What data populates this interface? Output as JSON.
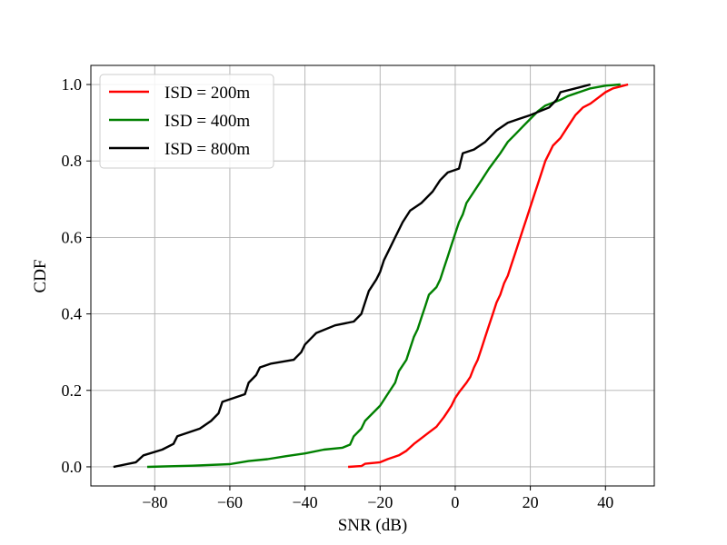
{
  "chart_data": {
    "type": "line",
    "title": "",
    "xlabel": "SNR (dB)",
    "ylabel": "CDF",
    "xlim": [
      -97,
      53
    ],
    "ylim": [
      -0.05,
      1.05
    ],
    "xticks": [
      -80,
      -60,
      -40,
      -20,
      0,
      20,
      40
    ],
    "yticks": [
      0.0,
      0.2,
      0.4,
      0.6,
      0.8,
      1.0
    ],
    "xtick_labels": [
      "−80",
      "−60",
      "−40",
      "−20",
      "0",
      "20",
      "40"
    ],
    "ytick_labels": [
      "0.0",
      "0.2",
      "0.4",
      "0.6",
      "0.8",
      "1.0"
    ],
    "grid": true,
    "legend_position": "top-left",
    "series": [
      {
        "name": "ISD = 200m",
        "color": "#ff0000",
        "points": [
          [
            -28.5,
            0.0
          ],
          [
            -25,
            0.002
          ],
          [
            -24,
            0.008
          ],
          [
            -20,
            0.012
          ],
          [
            -18,
            0.02
          ],
          [
            -15,
            0.03
          ],
          [
            -13,
            0.042
          ],
          [
            -11,
            0.06
          ],
          [
            -9,
            0.075
          ],
          [
            -7,
            0.09
          ],
          [
            -5,
            0.105
          ],
          [
            -3,
            0.13
          ],
          [
            -2,
            0.145
          ],
          [
            -1,
            0.16
          ],
          [
            0,
            0.18
          ],
          [
            1,
            0.195
          ],
          [
            3,
            0.22
          ],
          [
            4,
            0.235
          ],
          [
            5,
            0.26
          ],
          [
            6,
            0.28
          ],
          [
            7,
            0.31
          ],
          [
            8,
            0.34
          ],
          [
            9,
            0.37
          ],
          [
            10,
            0.4
          ],
          [
            11,
            0.43
          ],
          [
            12,
            0.45
          ],
          [
            13,
            0.48
          ],
          [
            14,
            0.5
          ],
          [
            15,
            0.53
          ],
          [
            16,
            0.56
          ],
          [
            17,
            0.59
          ],
          [
            18,
            0.62
          ],
          [
            19,
            0.65
          ],
          [
            20,
            0.68
          ],
          [
            21,
            0.71
          ],
          [
            22,
            0.74
          ],
          [
            23,
            0.77
          ],
          [
            24,
            0.8
          ],
          [
            25,
            0.82
          ],
          [
            26,
            0.84
          ],
          [
            28,
            0.86
          ],
          [
            30,
            0.89
          ],
          [
            32,
            0.92
          ],
          [
            34,
            0.94
          ],
          [
            36,
            0.95
          ],
          [
            38,
            0.965
          ],
          [
            40,
            0.98
          ],
          [
            42,
            0.99
          ],
          [
            44,
            0.995
          ],
          [
            46,
            1.0
          ]
        ]
      },
      {
        "name": "ISD = 400m",
        "color": "#008000",
        "points": [
          [
            -82,
            0.0
          ],
          [
            -70,
            0.003
          ],
          [
            -60,
            0.007
          ],
          [
            -55,
            0.015
          ],
          [
            -50,
            0.02
          ],
          [
            -45,
            0.028
          ],
          [
            -40,
            0.035
          ],
          [
            -35,
            0.045
          ],
          [
            -30,
            0.05
          ],
          [
            -28,
            0.058
          ],
          [
            -27,
            0.08
          ],
          [
            -25,
            0.1
          ],
          [
            -24,
            0.12
          ],
          [
            -22,
            0.14
          ],
          [
            -20,
            0.16
          ],
          [
            -18,
            0.19
          ],
          [
            -16,
            0.22
          ],
          [
            -15,
            0.25
          ],
          [
            -13,
            0.28
          ],
          [
            -12,
            0.31
          ],
          [
            -11,
            0.34
          ],
          [
            -10,
            0.36
          ],
          [
            -9,
            0.39
          ],
          [
            -8,
            0.42
          ],
          [
            -7,
            0.45
          ],
          [
            -5,
            0.47
          ],
          [
            -4,
            0.49
          ],
          [
            -3,
            0.52
          ],
          [
            -2,
            0.55
          ],
          [
            -1,
            0.58
          ],
          [
            0,
            0.61
          ],
          [
            1,
            0.64
          ],
          [
            2,
            0.66
          ],
          [
            3,
            0.69
          ],
          [
            5,
            0.72
          ],
          [
            7,
            0.75
          ],
          [
            9,
            0.78
          ],
          [
            12,
            0.82
          ],
          [
            14,
            0.85
          ],
          [
            16,
            0.87
          ],
          [
            18,
            0.89
          ],
          [
            20,
            0.91
          ],
          [
            22,
            0.93
          ],
          [
            24,
            0.945
          ],
          [
            28,
            0.96
          ],
          [
            30,
            0.97
          ],
          [
            33,
            0.98
          ],
          [
            36,
            0.99
          ],
          [
            40,
            0.997
          ],
          [
            44,
            1.0
          ]
        ]
      },
      {
        "name": "ISD = 800m",
        "color": "#000000",
        "points": [
          [
            -91,
            0.0
          ],
          [
            -85,
            0.012
          ],
          [
            -83,
            0.03
          ],
          [
            -78,
            0.045
          ],
          [
            -75,
            0.06
          ],
          [
            -74,
            0.08
          ],
          [
            -68,
            0.1
          ],
          [
            -65,
            0.12
          ],
          [
            -63,
            0.14
          ],
          [
            -62,
            0.17
          ],
          [
            -56,
            0.19
          ],
          [
            -55,
            0.22
          ],
          [
            -53,
            0.24
          ],
          [
            -52,
            0.26
          ],
          [
            -49,
            0.27
          ],
          [
            -43,
            0.28
          ],
          [
            -41,
            0.3
          ],
          [
            -40,
            0.32
          ],
          [
            -38,
            0.34
          ],
          [
            -37,
            0.35
          ],
          [
            -32,
            0.37
          ],
          [
            -27,
            0.38
          ],
          [
            -25,
            0.4
          ],
          [
            -24,
            0.43
          ],
          [
            -23,
            0.46
          ],
          [
            -21,
            0.49
          ],
          [
            -20,
            0.51
          ],
          [
            -19,
            0.54
          ],
          [
            -17,
            0.58
          ],
          [
            -16,
            0.6
          ],
          [
            -14,
            0.64
          ],
          [
            -12,
            0.67
          ],
          [
            -9,
            0.69
          ],
          [
            -6,
            0.72
          ],
          [
            -4,
            0.75
          ],
          [
            -2,
            0.77
          ],
          [
            1,
            0.78
          ],
          [
            2,
            0.82
          ],
          [
            5,
            0.83
          ],
          [
            8,
            0.85
          ],
          [
            10,
            0.87
          ],
          [
            11,
            0.88
          ],
          [
            14,
            0.9
          ],
          [
            17,
            0.91
          ],
          [
            20,
            0.92
          ],
          [
            25,
            0.94
          ],
          [
            27,
            0.96
          ],
          [
            28,
            0.98
          ],
          [
            32,
            0.99
          ],
          [
            36,
            1.0
          ]
        ]
      }
    ]
  }
}
